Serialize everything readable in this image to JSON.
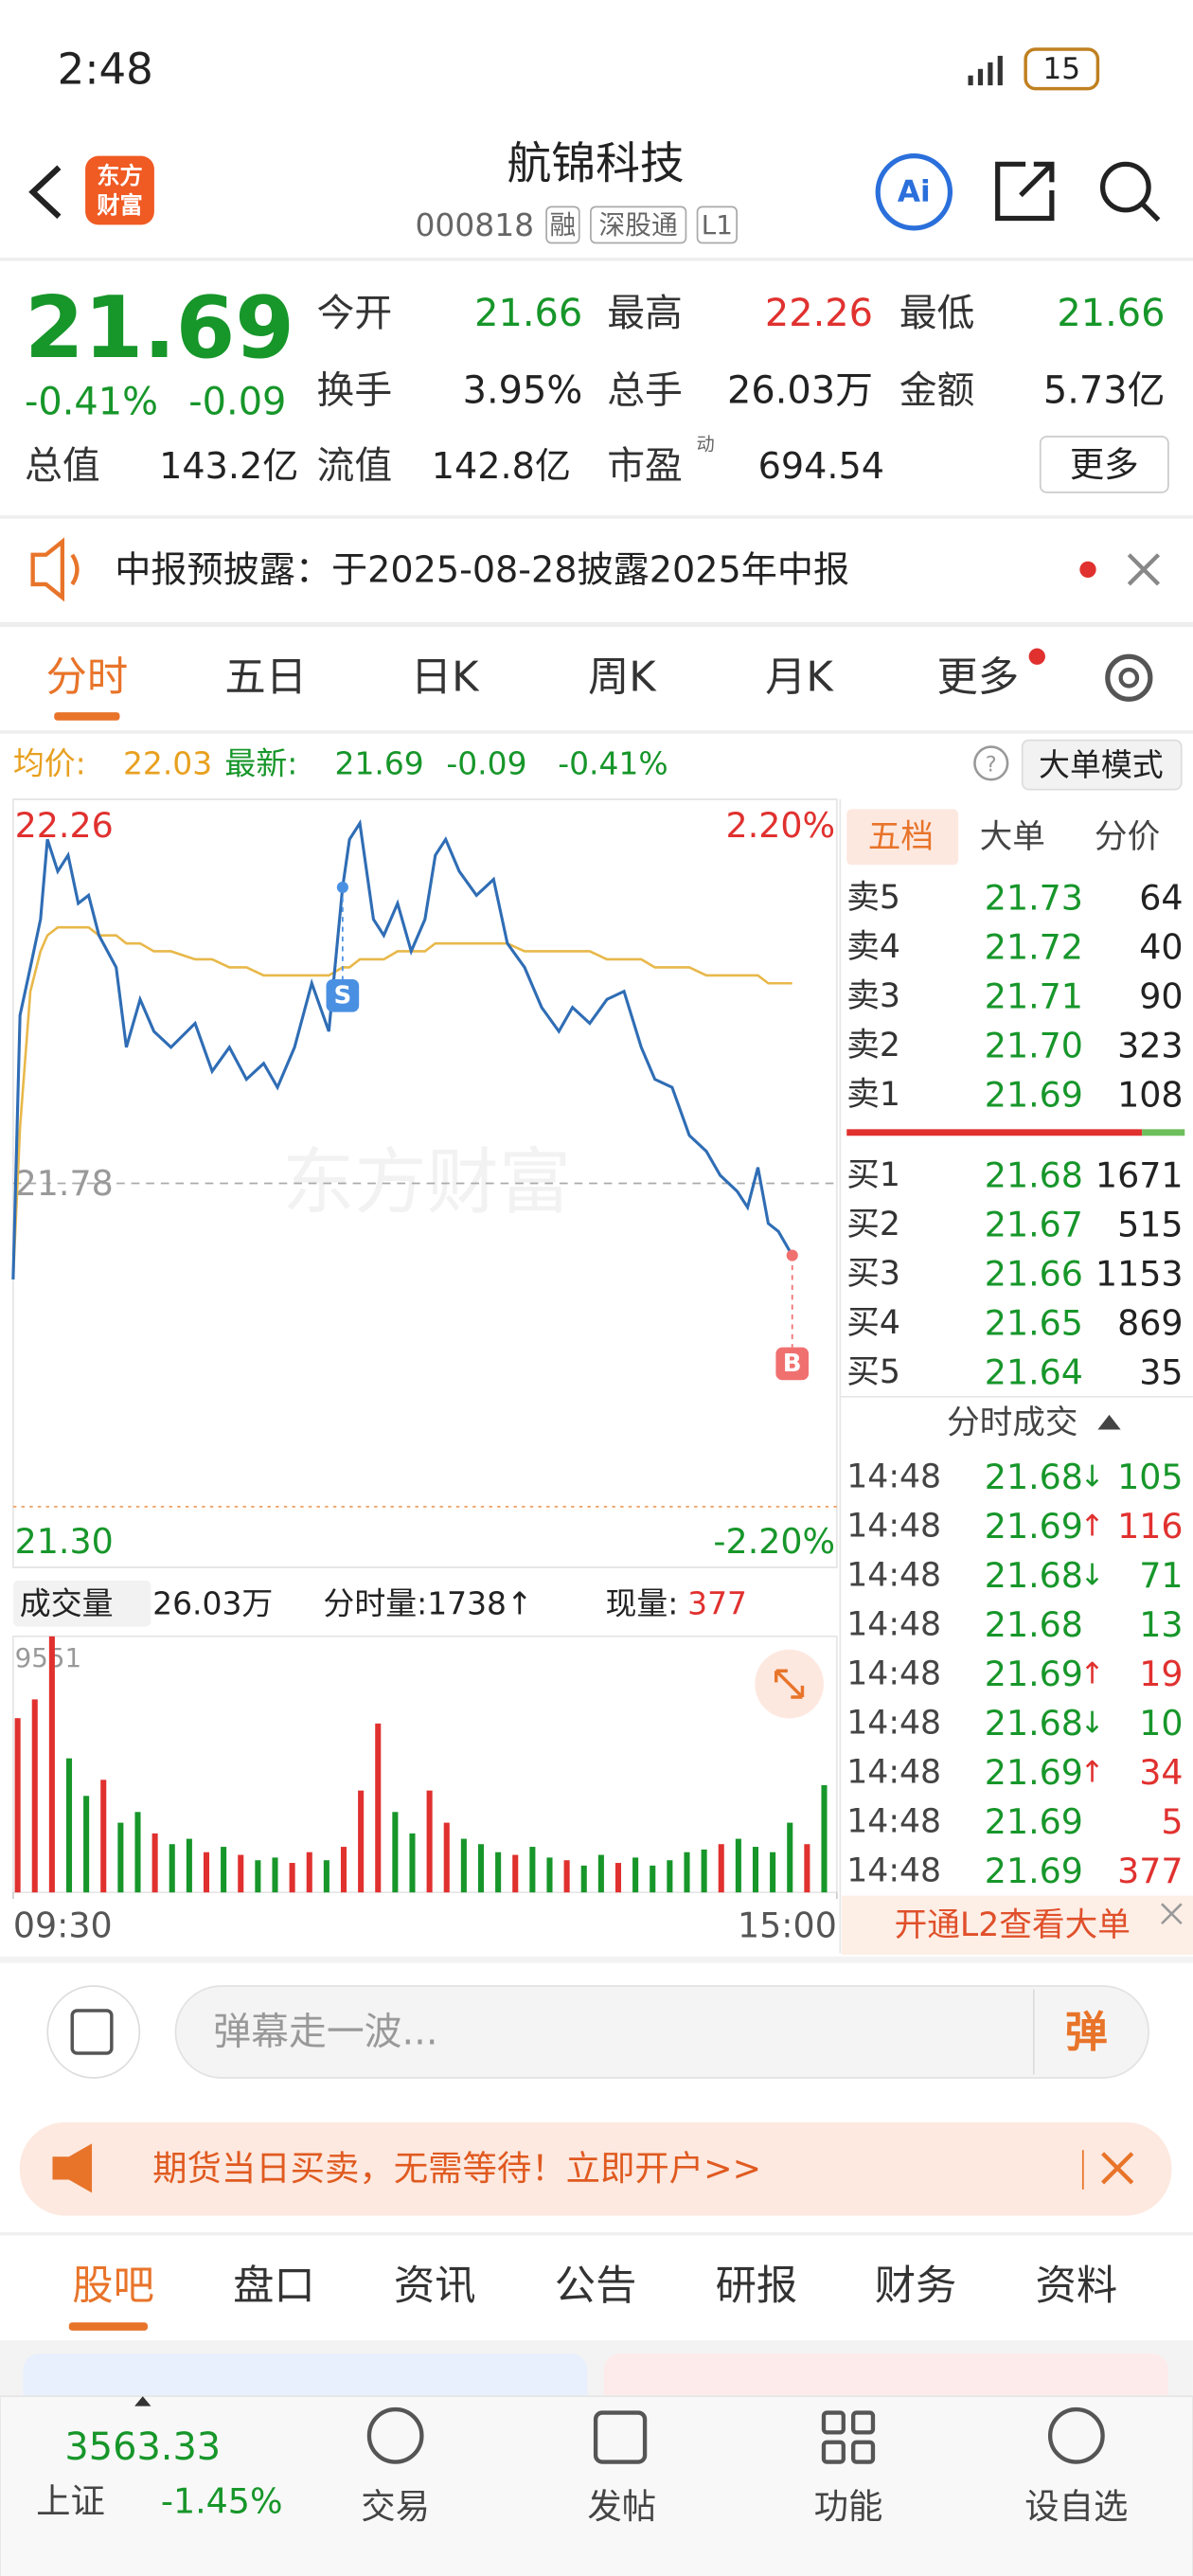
{
  "status_bar": {
    "time": "2:48",
    "battery": "15"
  },
  "header": {
    "logo": [
      "东方",
      "财富"
    ],
    "title": "航锦科技",
    "code": "000818",
    "tags": [
      "融",
      "深股通",
      "L1"
    ]
  },
  "quote": {
    "price": "21.69",
    "change_pct": "-0.41%",
    "change": "-0.09",
    "fields": [
      {
        "label": "今开",
        "value": "21.66",
        "color": "#17962a"
      },
      {
        "label": "最高",
        "value": "22.26",
        "color": "#e0312f"
      },
      {
        "label": "最低",
        "value": "21.66",
        "color": "#17962a"
      },
      {
        "label": "换手",
        "value": "3.95%",
        "color": "#222222"
      },
      {
        "label": "总手",
        "value": "26.03万",
        "color": "#222222"
      },
      {
        "label": "金额",
        "value": "5.73亿",
        "color": "#222222"
      },
      {
        "label": "总值",
        "value": "143.2亿",
        "color": "#222222"
      },
      {
        "label": "流值",
        "value": "142.8亿",
        "color": "#222222"
      },
      {
        "label": "市盈",
        "value": "694.54",
        "color": "#222222"
      }
    ],
    "pe_sup": "动",
    "more": "更多"
  },
  "notice": "中报预披露：于2025-08-28披露2025年中报",
  "chart_tabs": [
    "分时",
    "五日",
    "日K",
    "周K",
    "月K",
    "更多"
  ],
  "info_bar": {
    "avg_label": "均价:",
    "avg": "22.03",
    "latest_label": "最新:",
    "latest": "21.69",
    "change": "-0.09",
    "change_pct": "-0.41%",
    "mode": "大单模式"
  },
  "volume_bar": {
    "label": "成交量",
    "total": "26.03万",
    "minute": "分时量:1738↑",
    "current_label": "现量:",
    "current": "377"
  },
  "chart_data": [
    {
      "type": "line",
      "x": [
        0,
        2,
        5,
        8,
        10,
        13,
        16,
        19,
        22,
        25,
        30,
        33,
        37,
        41,
        46,
        53,
        58,
        63,
        68,
        73,
        77,
        82,
        87,
        92,
        96,
        98,
        101,
        105,
        108,
        112,
        116,
        120,
        123,
        126,
        130,
        135,
        140,
        144,
        149,
        154,
        159,
        163,
        168,
        173,
        178,
        183,
        187,
        192,
        197,
        202,
        206,
        211,
        214,
        217,
        220,
        223,
        227
      ],
      "series": [
        {
          "color": "#2f6db5",
          "values": [
            21.66,
            21.99,
            22.05,
            22.11,
            22.21,
            22.17,
            22.19,
            22.13,
            22.14,
            22.09,
            22.05,
            21.95,
            22.01,
            21.97,
            21.95,
            21.98,
            21.92,
            21.95,
            21.91,
            21.93,
            21.9,
            21.95,
            22.03,
            21.97,
            22.15,
            22.21,
            22.23,
            22.11,
            22.09,
            22.13,
            22.07,
            22.11,
            22.19,
            22.21,
            22.17,
            22.14,
            22.16,
            22.08,
            22.05,
            22.0,
            21.97,
            22.0,
            21.98,
            22.01,
            22.02,
            21.95,
            21.91,
            21.9,
            21.84,
            21.82,
            21.79,
            21.77,
            21.75,
            21.8,
            21.73,
            21.72,
            21.69
          ]
        },
        {
          "color": "#e8b84a",
          "values": [
            21.66,
            21.85,
            22.02,
            22.07,
            22.09,
            22.1,
            22.1,
            22.1,
            22.1,
            22.09,
            22.09,
            22.08,
            22.08,
            22.07,
            22.07,
            22.06,
            22.06,
            22.05,
            22.05,
            22.04,
            22.04,
            22.04,
            22.04,
            22.04,
            22.05,
            22.05,
            22.06,
            22.06,
            22.06,
            22.07,
            22.07,
            22.07,
            22.08,
            22.08,
            22.08,
            22.08,
            22.08,
            22.08,
            22.07,
            22.07,
            22.07,
            22.07,
            22.07,
            22.06,
            22.06,
            22.06,
            22.05,
            22.05,
            22.05,
            22.04,
            22.04,
            22.04,
            22.04,
            22.04,
            22.03,
            22.03,
            22.03
          ]
        }
      ],
      "xlim": [
        0,
        240
      ],
      "ylim": [
        21.3,
        22.26
      ],
      "yticks": [
        22.26,
        21.78,
        {
          "value": 21.3,
          "label": "21.30"
        }
      ],
      "ytick_colors": [
        "#e0312f",
        "#999999",
        "#17962a"
      ],
      "y2lim": [
        -2.2,
        2.2
      ],
      "y2ticks": [
        {
          "value": 2.2,
          "label": "2.20%"
        },
        {
          "value": -2.2,
          "label": "-2.20%"
        }
      ],
      "y2tick_colors": [
        "#e0312f",
        "#17962a"
      ],
      "watermark": "东方财富",
      "annotations": [
        {
          "text": "S",
          "x": 96,
          "y": 22.15,
          "color": "#4a90e2"
        },
        {
          "text": "B",
          "x": 227,
          "y": 21.69,
          "color": "#f07070"
        }
      ],
      "grid": true
    },
    {
      "type": "bar",
      "x": [
        0,
        5,
        10,
        15,
        20,
        25,
        30,
        35,
        40,
        45,
        50,
        55,
        60,
        65,
        70,
        75,
        80,
        85,
        90,
        95,
        100,
        105,
        110,
        115,
        120,
        125,
        130,
        135,
        140,
        145,
        150,
        155,
        160,
        165,
        170,
        175,
        180,
        185,
        190,
        195,
        200,
        205,
        210,
        215,
        220,
        225,
        230,
        235
      ],
      "values": [
        6500,
        7200,
        9551,
        5000,
        3600,
        4200,
        2600,
        3000,
        2200,
        1800,
        2000,
        1500,
        1700,
        1400,
        1200,
        1300,
        1100,
        1500,
        1200,
        1700,
        3800,
        6300,
        3000,
        2200,
        3800,
        2600,
        2000,
        1800,
        1500,
        1400,
        1700,
        1300,
        1200,
        1000,
        1400,
        1100,
        1300,
        1000,
        1200,
        1500,
        1600,
        1800,
        2000,
        1700,
        1500,
        2600,
        1800,
        4000
      ],
      "bar_colors": [
        "#e0312f",
        "#e0312f",
        "#e0312f",
        "#17962a",
        "#17962a",
        "#e0312f",
        "#17962a",
        "#17962a",
        "#e0312f",
        "#17962a",
        "#17962a",
        "#e0312f",
        "#17962a",
        "#e0312f",
        "#17962a",
        "#17962a",
        "#e0312f",
        "#e0312f",
        "#17962a",
        "#e0312f",
        "#e0312f",
        "#e0312f",
        "#17962a",
        "#17962a",
        "#e0312f",
        "#e0312f",
        "#17962a",
        "#17962a",
        "#17962a",
        "#e0312f",
        "#17962a",
        "#17962a",
        "#e0312f",
        "#17962a",
        "#17962a",
        "#e0312f",
        "#17962a",
        "#17962a",
        "#17962a",
        "#17962a",
        "#17962a",
        "#e0312f",
        "#17962a",
        "#17962a",
        "#17962a",
        "#17962a",
        "#e0312f",
        "#17962a"
      ],
      "xlim": [
        0,
        240
      ],
      "xticks": [
        {
          "value": 0,
          "label": "09:30"
        },
        {
          "value": 240,
          "label": "15:00"
        }
      ],
      "ylim": [
        0,
        9551
      ],
      "yticks": [
        9551
      ]
    }
  ],
  "order_book": {
    "tabs": [
      "五档",
      "大单",
      "分价"
    ],
    "asks": [
      [
        "卖5",
        "21.73",
        "64"
      ],
      [
        "卖4",
        "21.72",
        "40"
      ],
      [
        "卖3",
        "21.71",
        "90"
      ],
      [
        "卖2",
        "21.70",
        "323"
      ],
      [
        "卖1",
        "21.69",
        "108"
      ]
    ],
    "bids": [
      [
        "买1",
        "21.68",
        "1671"
      ],
      [
        "买2",
        "21.67",
        "515"
      ],
      [
        "买3",
        "21.66",
        "1153"
      ],
      [
        "买4",
        "21.65",
        "869"
      ],
      [
        "买5",
        "21.64",
        "35"
      ]
    ]
  },
  "trades": {
    "title": "分时成交",
    "rows": [
      {
        "time": "14:48",
        "price": "21.68",
        "arrow": "↓",
        "volume": "105",
        "color": "#17962a"
      },
      {
        "time": "14:48",
        "price": "21.69",
        "arrow": "↑",
        "volume": "116",
        "color": "#e0312f"
      },
      {
        "time": "14:48",
        "price": "21.68",
        "arrow": "↓",
        "volume": "71",
        "color": "#17962a"
      },
      {
        "time": "14:48",
        "price": "21.68",
        "arrow": null,
        "volume": "13",
        "color": "#17962a"
      },
      {
        "time": "14:48",
        "price": "21.69",
        "arrow": "↑",
        "volume": "19",
        "color": "#e0312f"
      },
      {
        "time": "14:48",
        "price": "21.68",
        "arrow": "↓",
        "volume": "10",
        "color": "#17962a"
      },
      {
        "time": "14:48",
        "price": "21.69",
        "arrow": "↑",
        "volume": "34",
        "color": "#e0312f"
      },
      {
        "time": "14:48",
        "price": "21.69",
        "arrow": null,
        "volume": "5",
        "color": "#e0312f"
      },
      {
        "time": "14:48",
        "price": "21.69",
        "arrow": null,
        "volume": "377",
        "color": "#e0312f"
      }
    ]
  },
  "l2_banner": "开通L2查看大单",
  "danmu": {
    "placeholder": "弹幕走一波...",
    "button": "弹"
  },
  "ad": "期货当日买卖，无需等待！立即开户>>",
  "bottom_tabs": [
    "股吧",
    "盘口",
    "资讯",
    "公告",
    "研报",
    "财务",
    "资料"
  ],
  "nav": {
    "index_value": "3563.33",
    "index_name": "上证",
    "index_change": "-1.45%",
    "items": [
      "交易",
      "发帖",
      "功能",
      "设自选"
    ]
  }
}
